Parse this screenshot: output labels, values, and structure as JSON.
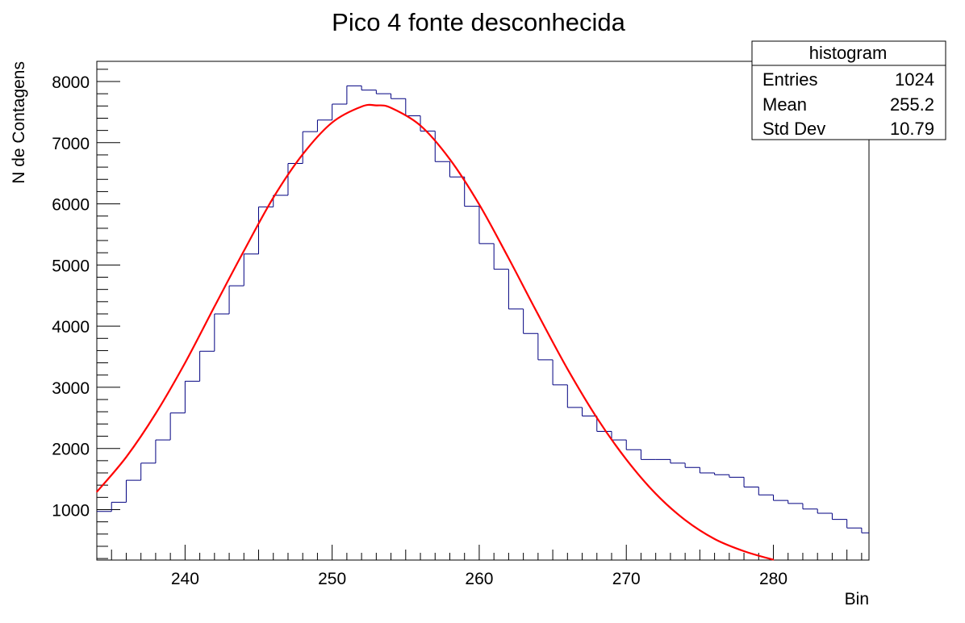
{
  "chart_data": {
    "type": "histogram",
    "title": "Pico 4 fonte desconhecida",
    "xlabel": "Bin",
    "ylabel": "N de Contagens",
    "xlim": [
      234,
      286.5
    ],
    "ylim": [
      175,
      8330
    ],
    "x_ticks": [
      240,
      250,
      260,
      270,
      280
    ],
    "y_ticks": [
      1000,
      2000,
      3000,
      4000,
      5000,
      6000,
      7000,
      8000
    ],
    "grid": false,
    "bin_width": 1,
    "series": [
      {
        "kind": "step-histogram",
        "color": "#000080",
        "x": [
          234,
          235,
          236,
          237,
          238,
          239,
          240,
          241,
          242,
          243,
          244,
          245,
          246,
          247,
          248,
          249,
          250,
          251,
          252,
          253,
          254,
          255,
          256,
          257,
          258,
          259,
          260,
          261,
          262,
          263,
          264,
          265,
          266,
          267,
          268,
          269,
          270,
          271,
          272,
          273,
          274,
          275,
          276,
          277,
          278,
          279,
          280,
          281,
          282,
          283,
          284,
          285,
          286
        ],
        "values": [
          970,
          1120,
          1480,
          1760,
          2140,
          2580,
          3100,
          3590,
          4200,
          4660,
          5180,
          5950,
          6140,
          6660,
          7180,
          7370,
          7630,
          7930,
          7860,
          7800,
          7720,
          7440,
          7190,
          6690,
          6440,
          5960,
          5350,
          4930,
          4280,
          3880,
          3450,
          3040,
          2670,
          2530,
          2280,
          2140,
          1980,
          1820,
          1820,
          1760,
          1690,
          1600,
          1570,
          1530,
          1370,
          1240,
          1150,
          1100,
          1010,
          940,
          840,
          700,
          620
        ]
      },
      {
        "kind": "gaussian-fit",
        "color": "#ff0000",
        "x": [
          234,
          236,
          238,
          240,
          242,
          244,
          246,
          248,
          250,
          252,
          253,
          254,
          256,
          258,
          260,
          262,
          264,
          266,
          268,
          270,
          272,
          274,
          276,
          278,
          280
        ],
        "values": [
          1290,
          1860,
          2570,
          3400,
          4320,
          5230,
          6100,
          6810,
          7330,
          7590,
          7610,
          7570,
          7280,
          6730,
          5990,
          5110,
          4190,
          3300,
          2500,
          1820,
          1260,
          830,
          520,
          320,
          180
        ]
      }
    ],
    "stats_box": {
      "title": "histogram",
      "rows": [
        {
          "label": "Entries",
          "value": "1024"
        },
        {
          "label": "Mean",
          "value": "255.2"
        },
        {
          "label": "Std Dev",
          "value": "10.79"
        }
      ],
      "placement": "top-right"
    }
  }
}
